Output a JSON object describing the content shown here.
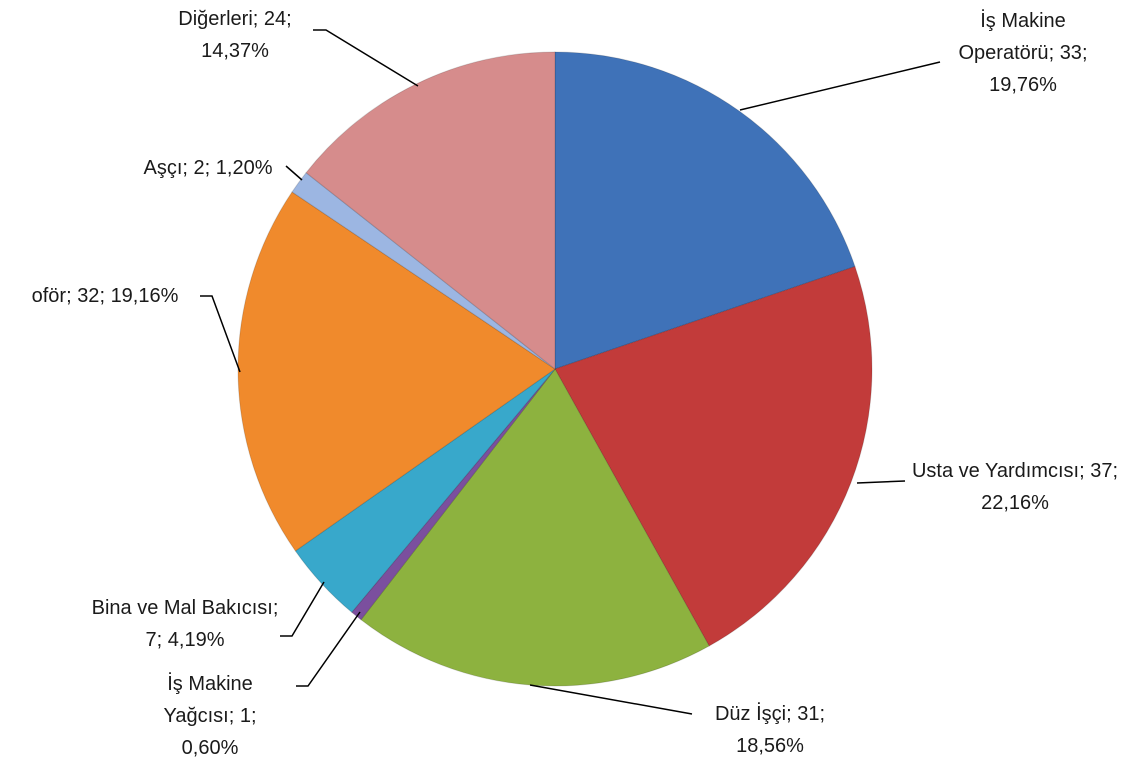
{
  "chart_data": {
    "type": "pie",
    "categories": [
      "İş Makine Operatörü",
      "Usta ve Yardımcısı",
      "Düz İşçi",
      "İş Makine Yağcısı",
      "Bina ve Mal Bakıcısı",
      "oför",
      "Aşçı",
      "Diğerleri"
    ],
    "values": [
      33,
      37,
      31,
      1,
      7,
      32,
      2,
      24
    ],
    "percentages": [
      19.76,
      22.16,
      18.56,
      0.6,
      4.19,
      19.16,
      1.2,
      14.37
    ],
    "percentage_labels": [
      "19,76%",
      "22,16%",
      "18,56%",
      "0,60%",
      "4,19%",
      "19,16%",
      "1,20%",
      "14,37%"
    ],
    "label_separator": "; ",
    "colors": [
      "#3f72b8",
      "#c23b3a",
      "#8db23f",
      "#7b4f9e",
      "#38a8cb",
      "#f08a2c",
      "#9cb6e2",
      "#d68c8c"
    ]
  }
}
